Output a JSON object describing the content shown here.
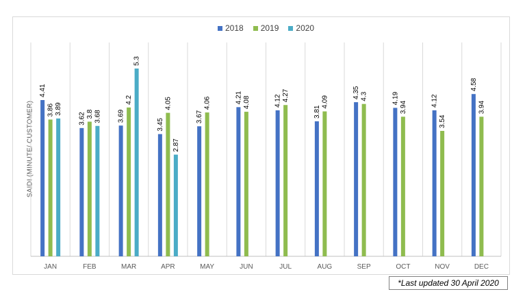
{
  "chart_data": {
    "type": "bar",
    "title": "",
    "xlabel": "",
    "ylabel": "SAIDI (MINUTE/ CUSTOMER)",
    "ylim": [
      0,
      6
    ],
    "grid": false,
    "legend_position": "top-center",
    "categories": [
      "JAN",
      "FEB",
      "MAR",
      "APR",
      "MAY",
      "JUN",
      "JUL",
      "AUG",
      "SEP",
      "OCT",
      "NOV",
      "DEC"
    ],
    "series": [
      {
        "name": "2018",
        "color": "#4472c4",
        "values": [
          4.41,
          3.62,
          3.69,
          3.45,
          3.67,
          4.21,
          4.12,
          3.81,
          4.35,
          4.19,
          4.12,
          4.58
        ]
      },
      {
        "name": "2019",
        "color": "#8fbc4f",
        "values": [
          3.86,
          3.8,
          4.2,
          4.05,
          4.06,
          4.08,
          4.27,
          4.09,
          4.3,
          3.94,
          3.54,
          3.94
        ]
      },
      {
        "name": "2020",
        "color": "#4bacc6",
        "values": [
          3.89,
          3.68,
          5.3,
          2.87,
          null,
          null,
          null,
          null,
          null,
          null,
          null,
          null
        ]
      }
    ]
  },
  "note": "*Last updated 30 April 2020"
}
